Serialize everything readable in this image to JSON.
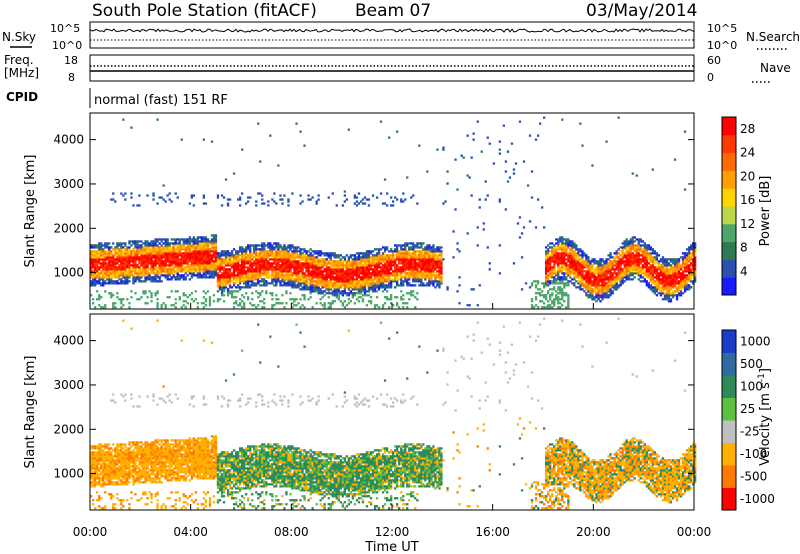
{
  "header": {
    "station": "South Pole Station (fitACF)",
    "beam": "Beam 07",
    "date": "03/May/2014"
  },
  "top_panels": {
    "nsky_label": "N.Sky",
    "nsearch_label": "N.Search",
    "noise_ticks": [
      "10^5",
      "10^0"
    ],
    "freq_label_1": "Freq.",
    "freq_label_2": "[MHz]",
    "freq_ticks": [
      "18",
      "8"
    ],
    "nave_label": "Nave",
    "nave_ticks": [
      "60",
      "0"
    ],
    "cpid_label": "CPID",
    "cpid_text": "normal (fast) 151 RF"
  },
  "chart_data": [
    {
      "type": "heatmap",
      "title": "",
      "xlabel": "Time UT",
      "ylabel": "Slant Range [km]",
      "x_ticks": [
        "00:00",
        "04:00",
        "08:00",
        "12:00",
        "16:00",
        "20:00",
        "00:00"
      ],
      "y_ticks": [
        "1000",
        "2000",
        "3000",
        "4000"
      ],
      "ylim": [
        180,
        4600
      ],
      "colorbar": {
        "label": "Power [dB]",
        "ticks": [
          "4",
          "8",
          "12",
          "16",
          "20",
          "24",
          "28"
        ],
        "range": [
          0,
          30
        ],
        "colors": [
          "#1a1aff",
          "#2a50b0",
          "#2f7a55",
          "#4da56a",
          "#b8d84a",
          "#ffd400",
          "#ffa000",
          "#ff6a00",
          "#ff3a00",
          "#ff0000"
        ]
      },
      "features": [
        {
          "time_hours": [
            0,
            5
          ],
          "range_km": [
            900,
            1600
          ],
          "power_db": 24
        },
        {
          "time_hours": [
            5,
            14
          ],
          "range_km": [
            700,
            1400
          ],
          "power_db": 28
        },
        {
          "time_hours": [
            18,
            24
          ],
          "range_km": [
            600,
            1600
          ],
          "power_db": 26
        },
        {
          "time_hours": [
            0.5,
            13
          ],
          "range_km": [
            2500,
            2800
          ],
          "power_db": 6
        }
      ]
    },
    {
      "type": "heatmap",
      "title": "",
      "xlabel": "Time UT",
      "ylabel": "Slant Range [km]",
      "x_ticks": [
        "00:00",
        "04:00",
        "08:00",
        "12:00",
        "16:00",
        "20:00",
        "00:00"
      ],
      "y_ticks": [
        "1000",
        "2000",
        "3000",
        "4000"
      ],
      "ylim": [
        180,
        4600
      ],
      "colorbar": {
        "label": "Velocity [m s^-1]",
        "ticks": [
          "1000",
          "500",
          "100",
          "25",
          "-25",
          "-100",
          "-500",
          "-1000"
        ],
        "colors": [
          "#1a3cc8",
          "#2f6aa0",
          "#2f8a5a",
          "#5cc040",
          "#c0c0c0",
          "#ffb000",
          "#ff7a00",
          "#ff0000"
        ]
      },
      "features": [
        {
          "time_hours": [
            0,
            5
          ],
          "range_km": [
            900,
            1600
          ],
          "velocity_ms": -100
        },
        {
          "time_hours": [
            5,
            14
          ],
          "range_km": [
            700,
            1400
          ],
          "velocity_ms": 100
        },
        {
          "time_hours": [
            18,
            24
          ],
          "range_km": [
            600,
            1600
          ],
          "velocity_ms": -100
        }
      ]
    }
  ]
}
